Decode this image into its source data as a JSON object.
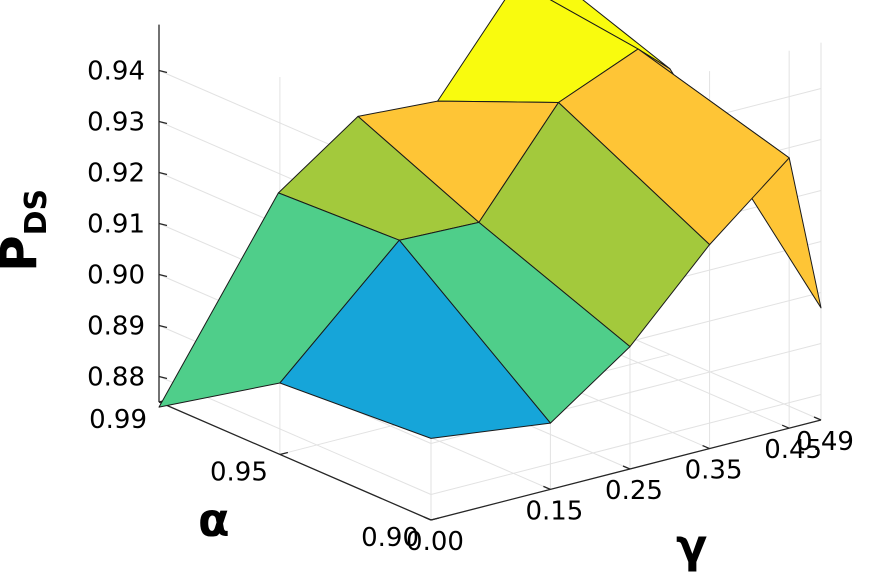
{
  "chart_data": {
    "type": "surface",
    "title": "",
    "xlabel": "γ",
    "ylabel": "α",
    "zlabel": "P",
    "zlabel_subscript": "DS",
    "x_ticks": [
      "0.00",
      "0.15",
      "0.25",
      "0.35",
      "0.45",
      "0.49"
    ],
    "y_ticks": [
      "0.99",
      "0.95",
      "0.90"
    ],
    "z_ticks": [
      "0.88",
      "0.89",
      "0.90",
      "0.91",
      "0.92",
      "0.93",
      "0.94"
    ],
    "zlim": [
      0.875,
      0.945
    ],
    "grid": true,
    "gamma": [
      0.0,
      0.15,
      0.25,
      0.35,
      0.45,
      0.49
    ],
    "alpha": [
      0.99,
      0.95,
      0.9
    ],
    "z": [
      [
        0.874,
        0.91,
        0.921,
        0.92,
        0.9395,
        0.9395
      ],
      [
        0.889,
        0.911,
        0.9105,
        0.93,
        0.9365,
        0.931
      ],
      [
        0.891,
        0.888,
        0.899,
        0.915,
        0.928,
        0.897
      ]
    ],
    "colormap": [
      "#0072bd",
      "#16a5d9",
      "#4fce8a",
      "#a3c93c",
      "#fec536",
      "#f9fb0e"
    ]
  }
}
